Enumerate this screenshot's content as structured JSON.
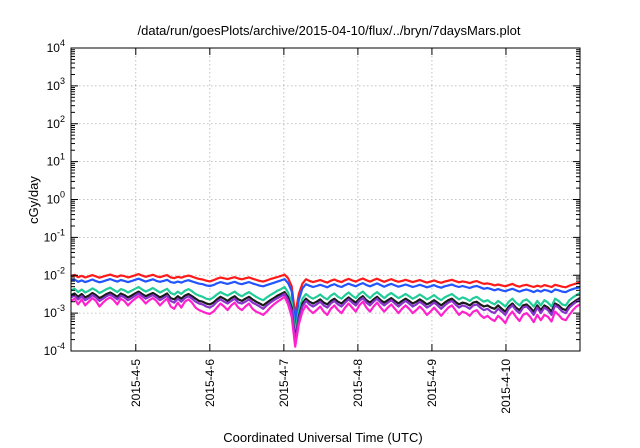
{
  "chart_data": {
    "type": "line",
    "title": "/data/run/goesPlots/archive/2015-04-10/flux/../bryn/7daysMars.plot",
    "xlabel": "Coordinated Universal Time (UTC)",
    "ylabel": "cGy/day",
    "y_scale": "log",
    "ylim": [
      0.0001,
      10000
    ],
    "xlim": [
      "2015-04-04T03:00",
      "2015-04-11T00:00"
    ],
    "x_ticks": [
      "2015-4-5",
      "2015-4-6",
      "2015-4-7",
      "2015-4-8",
      "2015-4-9",
      "2015-4-10"
    ],
    "y_ticks": [
      {
        "base": "10",
        "exp": "-4"
      },
      {
        "base": "10",
        "exp": "-3"
      },
      {
        "base": "10",
        "exp": "-2"
      },
      {
        "base": "10",
        "exp": "-1"
      },
      {
        "base": "10",
        "exp": "0"
      },
      {
        "base": "10",
        "exp": "1"
      },
      {
        "base": "10",
        "exp": "2"
      },
      {
        "base": "10",
        "exp": "3"
      },
      {
        "base": "10",
        "exp": "4"
      }
    ],
    "grid": true,
    "legend": "none",
    "series": [
      {
        "color": "#ff1a1a",
        "values": [
          0.0095,
          0.0102,
          0.0089,
          0.0096,
          0.0087,
          0.0094,
          0.0101,
          0.0093,
          0.0086,
          0.0092,
          0.0098,
          0.0104,
          0.0097,
          0.0091,
          0.0099,
          0.0095,
          0.0088,
          0.0093,
          0.01,
          0.0107,
          0.0098,
          0.0091,
          0.0097,
          0.0103,
          0.0094,
          0.0089,
          0.0095,
          0.0101,
          0.0088,
          0.0084,
          0.0091,
          0.0086,
          0.0093,
          0.0098,
          0.0092,
          0.0085,
          0.008,
          0.0077,
          0.0072,
          0.0069,
          0.0074,
          0.0081,
          0.0087,
          0.0083,
          0.0079,
          0.0084,
          0.0089,
          0.0082,
          0.0078,
          0.0083,
          0.0088,
          0.0081,
          0.0076,
          0.0071,
          0.0068,
          0.0073,
          0.0079,
          0.0084,
          0.009,
          0.0096,
          0.0104,
          0.0083,
          0.0051,
          0.0009,
          0.0032,
          0.006,
          0.0078,
          0.0071,
          0.0066,
          0.007,
          0.0075,
          0.0069,
          0.0064,
          0.0072,
          0.0077,
          0.007,
          0.0066,
          0.0074,
          0.008,
          0.0073,
          0.0068,
          0.0076,
          0.0082,
          0.0074,
          0.0068,
          0.0075,
          0.0081,
          0.0073,
          0.0067,
          0.0073,
          0.0079,
          0.0072,
          0.0067,
          0.0071,
          0.0076,
          0.0071,
          0.0066,
          0.007,
          0.0075,
          0.0069,
          0.0064,
          0.0068,
          0.0073,
          0.0067,
          0.0063,
          0.0068,
          0.0072,
          0.0076,
          0.007,
          0.0065,
          0.0069,
          0.0066,
          0.0062,
          0.0067,
          0.007,
          0.0064,
          0.0059,
          0.0061,
          0.0058,
          0.0054,
          0.0057,
          0.0054,
          0.0051,
          0.0055,
          0.0059,
          0.0053,
          0.005,
          0.0054,
          0.0056,
          0.0052,
          0.0049,
          0.0053,
          0.005,
          0.0055,
          0.0052,
          0.0049,
          0.0056,
          0.0053,
          0.005,
          0.0048,
          0.0053,
          0.0057,
          0.0061,
          0.0064
        ]
      },
      {
        "color": "#2255ff",
        "values": [
          0.0071,
          0.0077,
          0.0067,
          0.0073,
          0.0066,
          0.0071,
          0.0077,
          0.007,
          0.0065,
          0.0069,
          0.0074,
          0.0079,
          0.0073,
          0.0068,
          0.0075,
          0.0071,
          0.0066,
          0.007,
          0.0076,
          0.0081,
          0.0074,
          0.0068,
          0.0073,
          0.0078,
          0.0071,
          0.0067,
          0.0071,
          0.0076,
          0.0066,
          0.0063,
          0.0068,
          0.0064,
          0.007,
          0.0074,
          0.0069,
          0.0064,
          0.006,
          0.0058,
          0.0054,
          0.0052,
          0.0055,
          0.0061,
          0.0066,
          0.0062,
          0.0059,
          0.0063,
          0.0067,
          0.0061,
          0.0058,
          0.0062,
          0.0066,
          0.0061,
          0.0057,
          0.0053,
          0.0051,
          0.0055,
          0.0059,
          0.0063,
          0.0068,
          0.0073,
          0.0079,
          0.0062,
          0.0038,
          0.0005,
          0.0022,
          0.0045,
          0.0058,
          0.0053,
          0.0049,
          0.0052,
          0.0056,
          0.0052,
          0.0048,
          0.0054,
          0.0058,
          0.0052,
          0.0049,
          0.0055,
          0.006,
          0.0055,
          0.0051,
          0.0057,
          0.0062,
          0.0055,
          0.0051,
          0.0056,
          0.0061,
          0.0055,
          0.005,
          0.0055,
          0.0059,
          0.0054,
          0.005,
          0.0053,
          0.0057,
          0.0053,
          0.0049,
          0.0052,
          0.0056,
          0.0052,
          0.0048,
          0.0051,
          0.0055,
          0.005,
          0.0047,
          0.0051,
          0.0054,
          0.0057,
          0.0052,
          0.0049,
          0.0052,
          0.0049,
          0.0046,
          0.005,
          0.0052,
          0.0048,
          0.0044,
          0.0046,
          0.0043,
          0.004,
          0.0043,
          0.004,
          0.0038,
          0.0041,
          0.0044,
          0.004,
          0.0037,
          0.004,
          0.0042,
          0.0039,
          0.0036,
          0.004,
          0.0037,
          0.0041,
          0.0039,
          0.0036,
          0.0042,
          0.004,
          0.0037,
          0.0036,
          0.004,
          0.0043,
          0.0046,
          0.0048
        ]
      },
      {
        "color": "#22cc99",
        "values": [
          0.004,
          0.0044,
          0.0036,
          0.0042,
          0.0035,
          0.0039,
          0.0045,
          0.004,
          0.0034,
          0.0038,
          0.0043,
          0.0047,
          0.0041,
          0.0036,
          0.0043,
          0.004,
          0.0035,
          0.0039,
          0.0044,
          0.0049,
          0.0042,
          0.0037,
          0.0041,
          0.0046,
          0.004,
          0.0035,
          0.0039,
          0.0044,
          0.0034,
          0.0031,
          0.0037,
          0.0032,
          0.0039,
          0.0043,
          0.0038,
          0.0032,
          0.0029,
          0.0027,
          0.0024,
          0.0023,
          0.0026,
          0.0031,
          0.0036,
          0.0032,
          0.0029,
          0.0033,
          0.0037,
          0.0031,
          0.0028,
          0.0032,
          0.0036,
          0.0031,
          0.0027,
          0.0024,
          0.0022,
          0.0026,
          0.003,
          0.0034,
          0.0039,
          0.0043,
          0.0049,
          0.0035,
          0.0019,
          0.0003,
          0.0011,
          0.0024,
          0.0032,
          0.0027,
          0.0024,
          0.0027,
          0.0031,
          0.0026,
          0.0023,
          0.0029,
          0.0033,
          0.0027,
          0.0024,
          0.003,
          0.0035,
          0.0029,
          0.0025,
          0.0032,
          0.0037,
          0.003,
          0.0025,
          0.0031,
          0.0036,
          0.003,
          0.0025,
          0.003,
          0.0034,
          0.0029,
          0.0025,
          0.0028,
          0.0032,
          0.0028,
          0.0024,
          0.0027,
          0.0031,
          0.0027,
          0.0023,
          0.0026,
          0.003,
          0.0025,
          0.0022,
          0.0026,
          0.0029,
          0.0032,
          0.0027,
          0.0023,
          0.0026,
          0.0024,
          0.0021,
          0.0025,
          0.0027,
          0.0023,
          0.002,
          0.0022,
          0.0019,
          0.0017,
          0.0021,
          0.0018,
          0.0015,
          0.002,
          0.0024,
          0.0019,
          0.0016,
          0.0021,
          0.0023,
          0.0019,
          0.0015,
          0.0021,
          0.0016,
          0.0022,
          0.0019,
          0.0015,
          0.0024,
          0.0021,
          0.0017,
          0.0016,
          0.0022,
          0.0026,
          0.003,
          0.0034
        ]
      },
      {
        "color": "#1a1a1a",
        "values": [
          0.003,
          0.0033,
          0.0027,
          0.0032,
          0.0026,
          0.0029,
          0.0034,
          0.003,
          0.0025,
          0.0028,
          0.0032,
          0.0035,
          0.0031,
          0.0027,
          0.0033,
          0.003,
          0.0026,
          0.0029,
          0.0033,
          0.0037,
          0.0032,
          0.0028,
          0.0031,
          0.0034,
          0.003,
          0.0026,
          0.0029,
          0.0033,
          0.0025,
          0.0023,
          0.0028,
          0.0024,
          0.0029,
          0.0032,
          0.0028,
          0.0024,
          0.0021,
          0.002,
          0.0018,
          0.0017,
          0.0019,
          0.0023,
          0.0027,
          0.0024,
          0.0021,
          0.0025,
          0.0028,
          0.0023,
          0.0021,
          0.0024,
          0.0027,
          0.0023,
          0.002,
          0.0018,
          0.0016,
          0.0019,
          0.0022,
          0.0025,
          0.0029,
          0.0032,
          0.0036,
          0.0026,
          0.0014,
          0.0002,
          0.0008,
          0.0018,
          0.0024,
          0.002,
          0.0018,
          0.002,
          0.0023,
          0.0019,
          0.0017,
          0.0021,
          0.0024,
          0.002,
          0.0018,
          0.0022,
          0.0026,
          0.0022,
          0.0019,
          0.0024,
          0.0028,
          0.0022,
          0.0019,
          0.0023,
          0.0027,
          0.0022,
          0.0019,
          0.0022,
          0.0025,
          0.0021,
          0.0018,
          0.0021,
          0.0024,
          0.0021,
          0.0018,
          0.002,
          0.0023,
          0.002,
          0.0017,
          0.0019,
          0.0022,
          0.0019,
          0.0016,
          0.0019,
          0.0022,
          0.0024,
          0.002,
          0.0017,
          0.0019,
          0.0018,
          0.0016,
          0.0019,
          0.002,
          0.0017,
          0.0015,
          0.0016,
          0.0014,
          0.0013,
          0.0016,
          0.0013,
          0.0011,
          0.0015,
          0.0018,
          0.0014,
          0.0012,
          0.0016,
          0.0017,
          0.0014,
          0.0011,
          0.0016,
          0.0012,
          0.0016,
          0.0014,
          0.0011,
          0.0018,
          0.0016,
          0.0013,
          0.0012,
          0.0016,
          0.0019,
          0.0022,
          0.0025
        ]
      },
      {
        "color": "#8833cc",
        "values": [
          0.0026,
          0.0029,
          0.0023,
          0.0028,
          0.0022,
          0.0025,
          0.003,
          0.0026,
          0.0021,
          0.0024,
          0.0028,
          0.0031,
          0.0027,
          0.0023,
          0.0029,
          0.0026,
          0.0022,
          0.0025,
          0.0029,
          0.0033,
          0.0028,
          0.0024,
          0.0027,
          0.003,
          0.0026,
          0.0022,
          0.0025,
          0.0029,
          0.0021,
          0.0019,
          0.0024,
          0.002,
          0.0025,
          0.0028,
          0.0024,
          0.002,
          0.0018,
          0.0017,
          0.0015,
          0.0014,
          0.0016,
          0.002,
          0.0023,
          0.002,
          0.0018,
          0.0021,
          0.0024,
          0.0019,
          0.0018,
          0.002,
          0.0023,
          0.0019,
          0.0017,
          0.0015,
          0.0013,
          0.0016,
          0.0019,
          0.0022,
          0.0025,
          0.0028,
          0.0032,
          0.0022,
          0.0012,
          0.00018,
          0.0007,
          0.0015,
          0.0021,
          0.0017,
          0.0015,
          0.0017,
          0.002,
          0.0016,
          0.0014,
          0.0018,
          0.0021,
          0.0017,
          0.0015,
          0.0019,
          0.0023,
          0.0019,
          0.0016,
          0.0021,
          0.0025,
          0.0019,
          0.0016,
          0.002,
          0.0024,
          0.0019,
          0.0016,
          0.0019,
          0.0022,
          0.0018,
          0.0015,
          0.0018,
          0.0021,
          0.0018,
          0.0015,
          0.0017,
          0.002,
          0.0017,
          0.0014,
          0.0016,
          0.0019,
          0.0016,
          0.0013,
          0.0016,
          0.0019,
          0.0021,
          0.0017,
          0.0014,
          0.0016,
          0.0015,
          0.0013,
          0.0016,
          0.0017,
          0.0014,
          0.0012,
          0.0013,
          0.0011,
          0.001,
          0.0013,
          0.0011,
          0.0009,
          0.0013,
          0.0016,
          0.0012,
          0.001,
          0.0014,
          0.0015,
          0.0012,
          0.0009,
          0.0014,
          0.001,
          0.0014,
          0.0012,
          0.0009,
          0.0016,
          0.0014,
          0.0011,
          0.001,
          0.0014,
          0.0017,
          0.002,
          0.0022
        ]
      },
      {
        "color": "#ff22cc",
        "values": [
          0.0021,
          0.0024,
          0.0017,
          0.0023,
          0.0016,
          0.002,
          0.0025,
          0.0021,
          0.0015,
          0.0019,
          0.0023,
          0.0026,
          0.0022,
          0.0017,
          0.0024,
          0.0021,
          0.0016,
          0.002,
          0.0024,
          0.0028,
          0.0023,
          0.0018,
          0.0022,
          0.0025,
          0.0021,
          0.0016,
          0.002,
          0.0024,
          0.0015,
          0.0013,
          0.0019,
          0.0014,
          0.002,
          0.0023,
          0.0019,
          0.0014,
          0.0012,
          0.0011,
          0.001,
          0.00095,
          0.0011,
          0.0014,
          0.0018,
          0.0015,
          0.0012,
          0.0016,
          0.0019,
          0.0014,
          0.0012,
          0.0015,
          0.0018,
          0.0013,
          0.0011,
          0.001,
          0.0009,
          0.0011,
          0.0014,
          0.0017,
          0.002,
          0.0023,
          0.0027,
          0.0017,
          0.0008,
          0.00013,
          0.0005,
          0.0011,
          0.0016,
          0.0012,
          0.001,
          0.0012,
          0.0015,
          0.0011,
          0.0009,
          0.0013,
          0.0016,
          0.0012,
          0.001,
          0.0014,
          0.0018,
          0.0014,
          0.0011,
          0.0016,
          0.002,
          0.0014,
          0.0011,
          0.0015,
          0.0019,
          0.0014,
          0.0011,
          0.0014,
          0.0017,
          0.0013,
          0.001,
          0.0013,
          0.0016,
          0.0013,
          0.001,
          0.0012,
          0.0015,
          0.0012,
          0.0009,
          0.0011,
          0.0014,
          0.0011,
          0.00085,
          0.0011,
          0.0014,
          0.0016,
          0.0012,
          0.0009,
          0.0011,
          0.001,
          0.00085,
          0.0011,
          0.0012,
          0.0009,
          0.00075,
          0.00085,
          0.0007,
          0.00062,
          0.00085,
          0.0007,
          0.00055,
          0.00085,
          0.0011,
          0.0008,
          0.00062,
          0.0009,
          0.001,
          0.0008,
          0.00058,
          0.0009,
          0.00065,
          0.0009,
          0.0008,
          0.0006,
          0.0011,
          0.0009,
          0.0007,
          0.00065,
          0.0009,
          0.0012,
          0.0015,
          0.0017
        ]
      }
    ]
  }
}
